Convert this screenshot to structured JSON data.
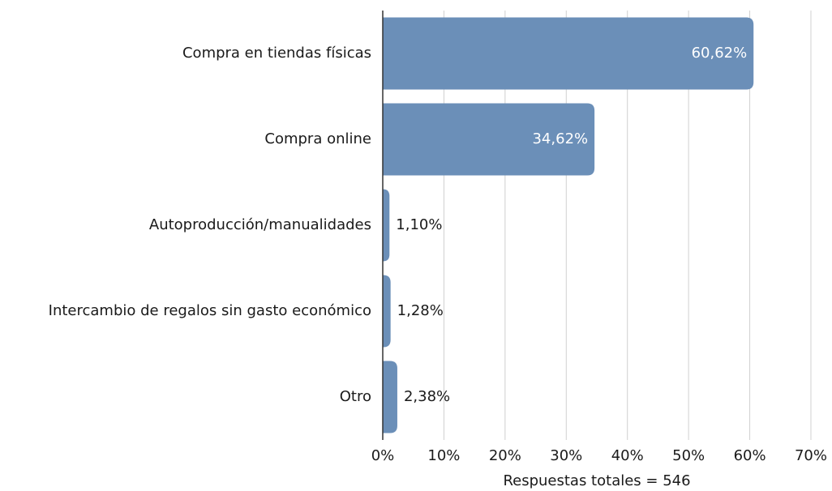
{
  "chart_data": {
    "type": "hbar",
    "categories": [
      "Compra en tiendas físicas",
      "Compra online",
      "Autoproducción/manualidades",
      "Intercambio de regalos sin gasto económico",
      "Otro"
    ],
    "values": [
      60.62,
      34.62,
      1.1,
      1.28,
      2.38
    ],
    "value_labels": [
      "60,62%",
      "34,62%",
      "1,10%",
      "1,28%",
      "2,38%"
    ],
    "color": "#6b8fb8",
    "xlim": [
      0,
      70
    ],
    "xticks": [
      {
        "value": 0,
        "label": "0%"
      },
      {
        "value": 10,
        "label": "10%"
      },
      {
        "value": 20,
        "label": "20%"
      },
      {
        "value": 30,
        "label": "30%"
      },
      {
        "value": 40,
        "label": "40%"
      },
      {
        "value": 50,
        "label": "50%"
      },
      {
        "value": 60,
        "label": "60%"
      },
      {
        "value": 70,
        "label": "70%"
      }
    ],
    "xlabel": "Respuestas totales = 546",
    "grid": true
  }
}
